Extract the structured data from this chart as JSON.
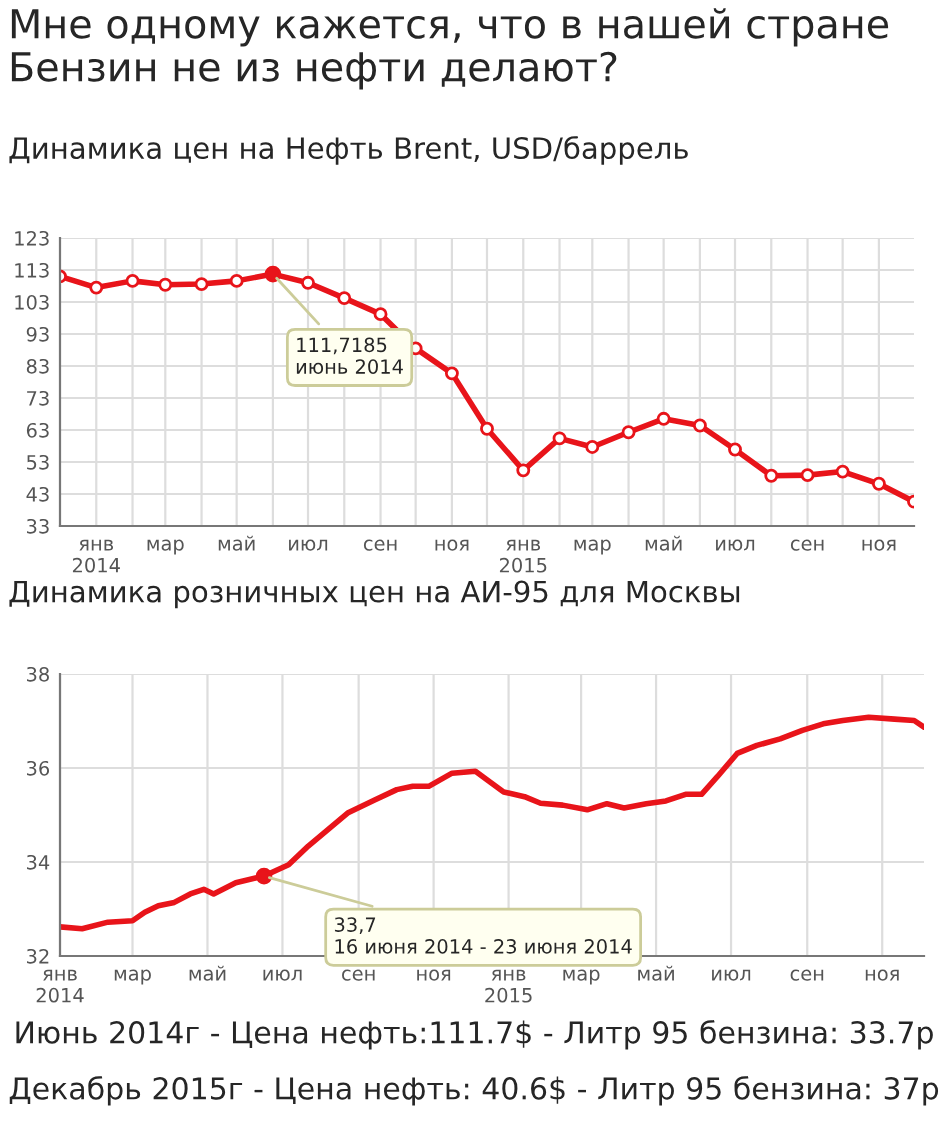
{
  "chart_data": [
    {
      "type": "line",
      "title": "Мне одному кажется, что в нашей стране\nБензин не из нефти делают?",
      "subtitle": "Динамика цен на Нефть Brent, USD/баррель",
      "x": [
        "2013-12",
        "2014-01",
        "2014-02",
        "2014-03",
        "2014-04",
        "2014-05",
        "2014-06",
        "2014-07",
        "2014-08",
        "2014-09",
        "2014-10",
        "2014-11",
        "2014-12",
        "2015-01",
        "2015-02",
        "2015-03",
        "2015-04",
        "2015-05",
        "2015-06",
        "2015-07",
        "2015-08",
        "2015-09",
        "2015-10",
        "2015-11",
        "2015-12"
      ],
      "series": [
        {
          "color": "#e8141a",
          "values": [
            111,
            107.5,
            109.6,
            108.4,
            108.6,
            109.6,
            111.7185,
            109,
            104.2,
            99.2,
            88.5,
            80.7,
            63.4,
            50.4,
            60.4,
            57.7,
            62.3,
            66.5,
            64.4,
            56.9,
            48.7,
            48.9,
            50,
            46.2,
            40.6
          ]
        }
      ],
      "marker": "circle",
      "grid": true,
      "xlim": [
        "2013-12",
        "2015-12"
      ],
      "xticks": [
        {
          "value": "2014-01",
          "label": "янв\n2014"
        },
        {
          "value": "2014-02",
          "label": null
        },
        {
          "value": "2014-03",
          "label": "мар"
        },
        {
          "value": "2014-04",
          "label": null
        },
        {
          "value": "2014-05",
          "label": "май"
        },
        {
          "value": "2014-06",
          "label": null
        },
        {
          "value": "2014-07",
          "label": "июл"
        },
        {
          "value": "2014-08",
          "label": null
        },
        {
          "value": "2014-09",
          "label": "сен"
        },
        {
          "value": "2014-10",
          "label": null
        },
        {
          "value": "2014-11",
          "label": "ноя"
        },
        {
          "value": "2014-12",
          "label": null
        },
        {
          "value": "2015-01",
          "label": "янв\n2015"
        },
        {
          "value": "2015-02",
          "label": null
        },
        {
          "value": "2015-03",
          "label": "мар"
        },
        {
          "value": "2015-04",
          "label": null
        },
        {
          "value": "2015-05",
          "label": "май"
        },
        {
          "value": "2015-06",
          "label": null
        },
        {
          "value": "2015-07",
          "label": "июл"
        },
        {
          "value": "2015-08",
          "label": null
        },
        {
          "value": "2015-09",
          "label": "сен"
        },
        {
          "value": "2015-10",
          "label": null
        },
        {
          "value": "2015-11",
          "label": "ноя"
        }
      ],
      "ylim": [
        33,
        123
      ],
      "yticks": [
        33,
        43,
        53,
        63,
        73,
        83,
        93,
        103,
        113,
        123
      ],
      "annotations": [
        {
          "text": "111,7185\nиюнь 2014",
          "x": "2014-06",
          "y": 111.7185
        }
      ]
    },
    {
      "type": "line",
      "title": "Динамика розничных цен на АИ-95 для Москвы",
      "x": [
        "2014-01-01",
        "2014-01-19",
        "2014-02-09",
        "2014-03-01",
        "2014-03-11",
        "2014-03-22",
        "2014-04-04",
        "2014-04-17",
        "2014-04-28",
        "2014-05-06",
        "2014-05-24",
        "2014-06-16",
        "2014-07-06",
        "2014-07-22",
        "2014-08-07",
        "2014-08-23",
        "2014-09-14",
        "2014-10-02",
        "2014-10-15",
        "2014-10-28",
        "2014-11-16",
        "2014-12-05",
        "2014-12-18",
        "2014-12-28",
        "2015-01-14",
        "2015-01-27",
        "2015-02-14",
        "2015-03-06",
        "2015-03-22",
        "2015-04-05",
        "2015-04-23",
        "2015-05-09",
        "2015-05-25",
        "2015-06-07",
        "2015-06-20",
        "2015-07-06",
        "2015-07-22",
        "2015-08-10",
        "2015-08-28",
        "2015-09-14",
        "2015-09-30",
        "2015-10-21",
        "2015-11-11",
        "2015-11-27",
        "2015-12-05"
      ],
      "series": [
        {
          "color": "#e8141a",
          "values": [
            32.62,
            32.58,
            32.72,
            32.75,
            32.93,
            33.07,
            33.14,
            33.32,
            33.42,
            33.32,
            33.56,
            33.7,
            33.94,
            34.34,
            34.69,
            35.04,
            35.32,
            35.54,
            35.61,
            35.61,
            35.89,
            35.93,
            35.68,
            35.49,
            35.39,
            35.25,
            35.21,
            35.11,
            35.24,
            35.15,
            35.24,
            35.3,
            35.44,
            35.44,
            35.82,
            36.31,
            36.48,
            36.62,
            36.8,
            36.94,
            37.01,
            37.08,
            37.04,
            37.01,
            36.87
          ]
        }
      ],
      "marker": "none",
      "grid": true,
      "xlim": [
        "2014-01-01",
        "2015-12-05"
      ],
      "xticks": [
        {
          "value": "2014-01-01",
          "label": "янв\n2014"
        },
        {
          "value": "2014-03-01",
          "label": "мар"
        },
        {
          "value": "2014-05-01",
          "label": "май"
        },
        {
          "value": "2014-07-01",
          "label": "июл"
        },
        {
          "value": "2014-09-01",
          "label": "сен"
        },
        {
          "value": "2014-11-01",
          "label": "ноя"
        },
        {
          "value": "2015-01-01",
          "label": "янв\n2015"
        },
        {
          "value": "2015-03-01",
          "label": "мар"
        },
        {
          "value": "2015-05-01",
          "label": "май"
        },
        {
          "value": "2015-07-01",
          "label": "июл"
        },
        {
          "value": "2015-09-01",
          "label": "сен"
        },
        {
          "value": "2015-11-01",
          "label": "ноя"
        }
      ],
      "ylim": [
        32,
        38
      ],
      "yticks": [
        32,
        34,
        36,
        38
      ],
      "annotations": [
        {
          "text": "33,7\n16 июня 2014 - 23 июня 2014",
          "x": "2014-06-16",
          "y": 33.7
        },
        "Июнь 2014г - Цена нефть:111.7$ - Литр 95 бензина: 33.7р",
        "Декабрь 2015г - Цена нефть: 40.6$ - Литр 95 бензина: 37р"
      ]
    }
  ]
}
